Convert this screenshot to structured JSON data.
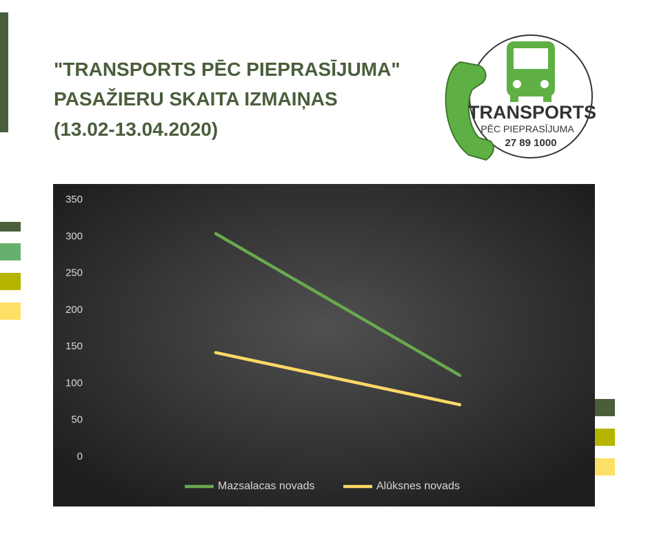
{
  "header": {
    "title_lines": [
      "\"TRANSPORTS PĒC PIEPRASĪJUMA\"",
      "PASAŽIERU SKAITA IZMAIŅAS",
      "(13.02-13.04.2020)"
    ]
  },
  "logo": {
    "name": "TRANSPORTS",
    "subtitle": "PĒC PIEPRASĪJUMA",
    "phone": "27 89 1000"
  },
  "chart_data": {
    "type": "line",
    "categories": [
      null,
      null
    ],
    "series": [
      {
        "name": "Mazsalacas novads",
        "color": "#6aa84f",
        "values": [
          304,
          111
        ]
      },
      {
        "name": "Alūksnes novads",
        "color": "#ffd966",
        "values": [
          142,
          71
        ]
      }
    ],
    "ylim": [
      0,
      350
    ],
    "yticks": [
      0,
      50,
      100,
      150,
      200,
      250,
      300,
      350
    ],
    "grid": false,
    "legend": "bottom"
  }
}
